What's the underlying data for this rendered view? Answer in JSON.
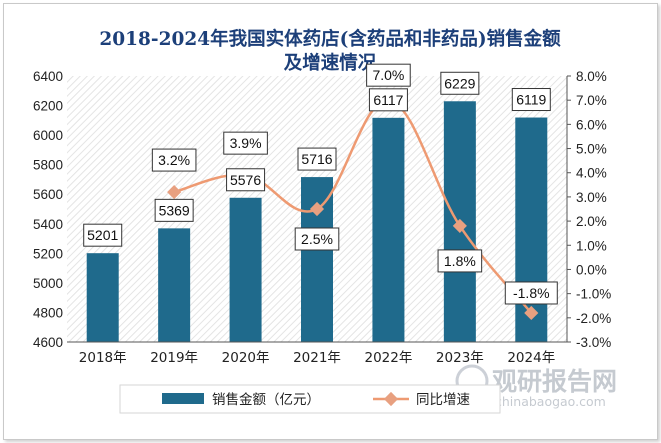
{
  "chart_data": {
    "type": "bar",
    "title_line1": "2018-2024年我国实体药店(含药品和非药品)销售金额",
    "title_line2": "及增速情况",
    "categories": [
      "2018年",
      "2019年",
      "2020年",
      "2021年",
      "2022年",
      "2023年",
      "2024年"
    ],
    "series": [
      {
        "name": "销售金额（亿元）",
        "type": "bar",
        "axis": "left",
        "color": "#1f6a8c",
        "values": [
          5201,
          5369,
          5576,
          5716,
          6117,
          6229,
          6119
        ],
        "labels": [
          "5201",
          "5369",
          "5576",
          "5716",
          "6117",
          "6229",
          "6119"
        ]
      },
      {
        "name": "同比增速",
        "type": "line",
        "axis": "right",
        "color": "#ee9a72",
        "values": [
          null,
          3.2,
          3.9,
          2.5,
          7.0,
          1.8,
          -1.8
        ],
        "labels": [
          "",
          "3.2%",
          "3.9%",
          "2.5%",
          "7.0%",
          "1.8%",
          "-1.8%"
        ]
      }
    ],
    "y_left": {
      "min": 4600,
      "max": 6400,
      "step": 200,
      "ticks": [
        "4600",
        "4800",
        "5000",
        "5200",
        "5400",
        "5600",
        "5800",
        "6000",
        "6200",
        "6400"
      ]
    },
    "y_right": {
      "min": -3.0,
      "max": 8.0,
      "step": 1.0,
      "ticks": [
        "-3.0%",
        "-2.0%",
        "-1.0%",
        "0.0%",
        "1.0%",
        "2.0%",
        "3.0%",
        "4.0%",
        "5.0%",
        "6.0%",
        "7.0%",
        "8.0%"
      ]
    },
    "legend_position": "bottom",
    "grid": false
  },
  "watermark": {
    "brand": "观研报告网",
    "url": "chinabaogao.com"
  }
}
